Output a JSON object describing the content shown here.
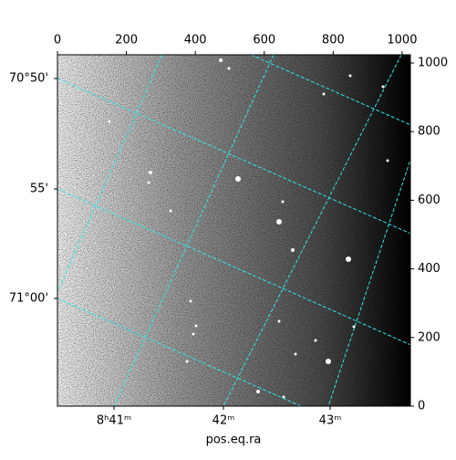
{
  "chart_data": {
    "type": "image",
    "xlabel": "pos.eq.ra",
    "xlim": [
      0,
      1024
    ],
    "xticks": [
      0,
      200,
      400,
      600,
      800,
      1000
    ],
    "ylim": [
      0,
      1024
    ],
    "yticks": [
      0,
      200,
      400,
      600,
      800,
      1000
    ],
    "ra_ticks": [
      "8ʰ41ᵐ",
      "42ᵐ",
      "43ᵐ"
    ],
    "dec_ticks": [
      "70°50'",
      "55'",
      "71°00'"
    ],
    "grid_color": "#2ee6e6"
  }
}
